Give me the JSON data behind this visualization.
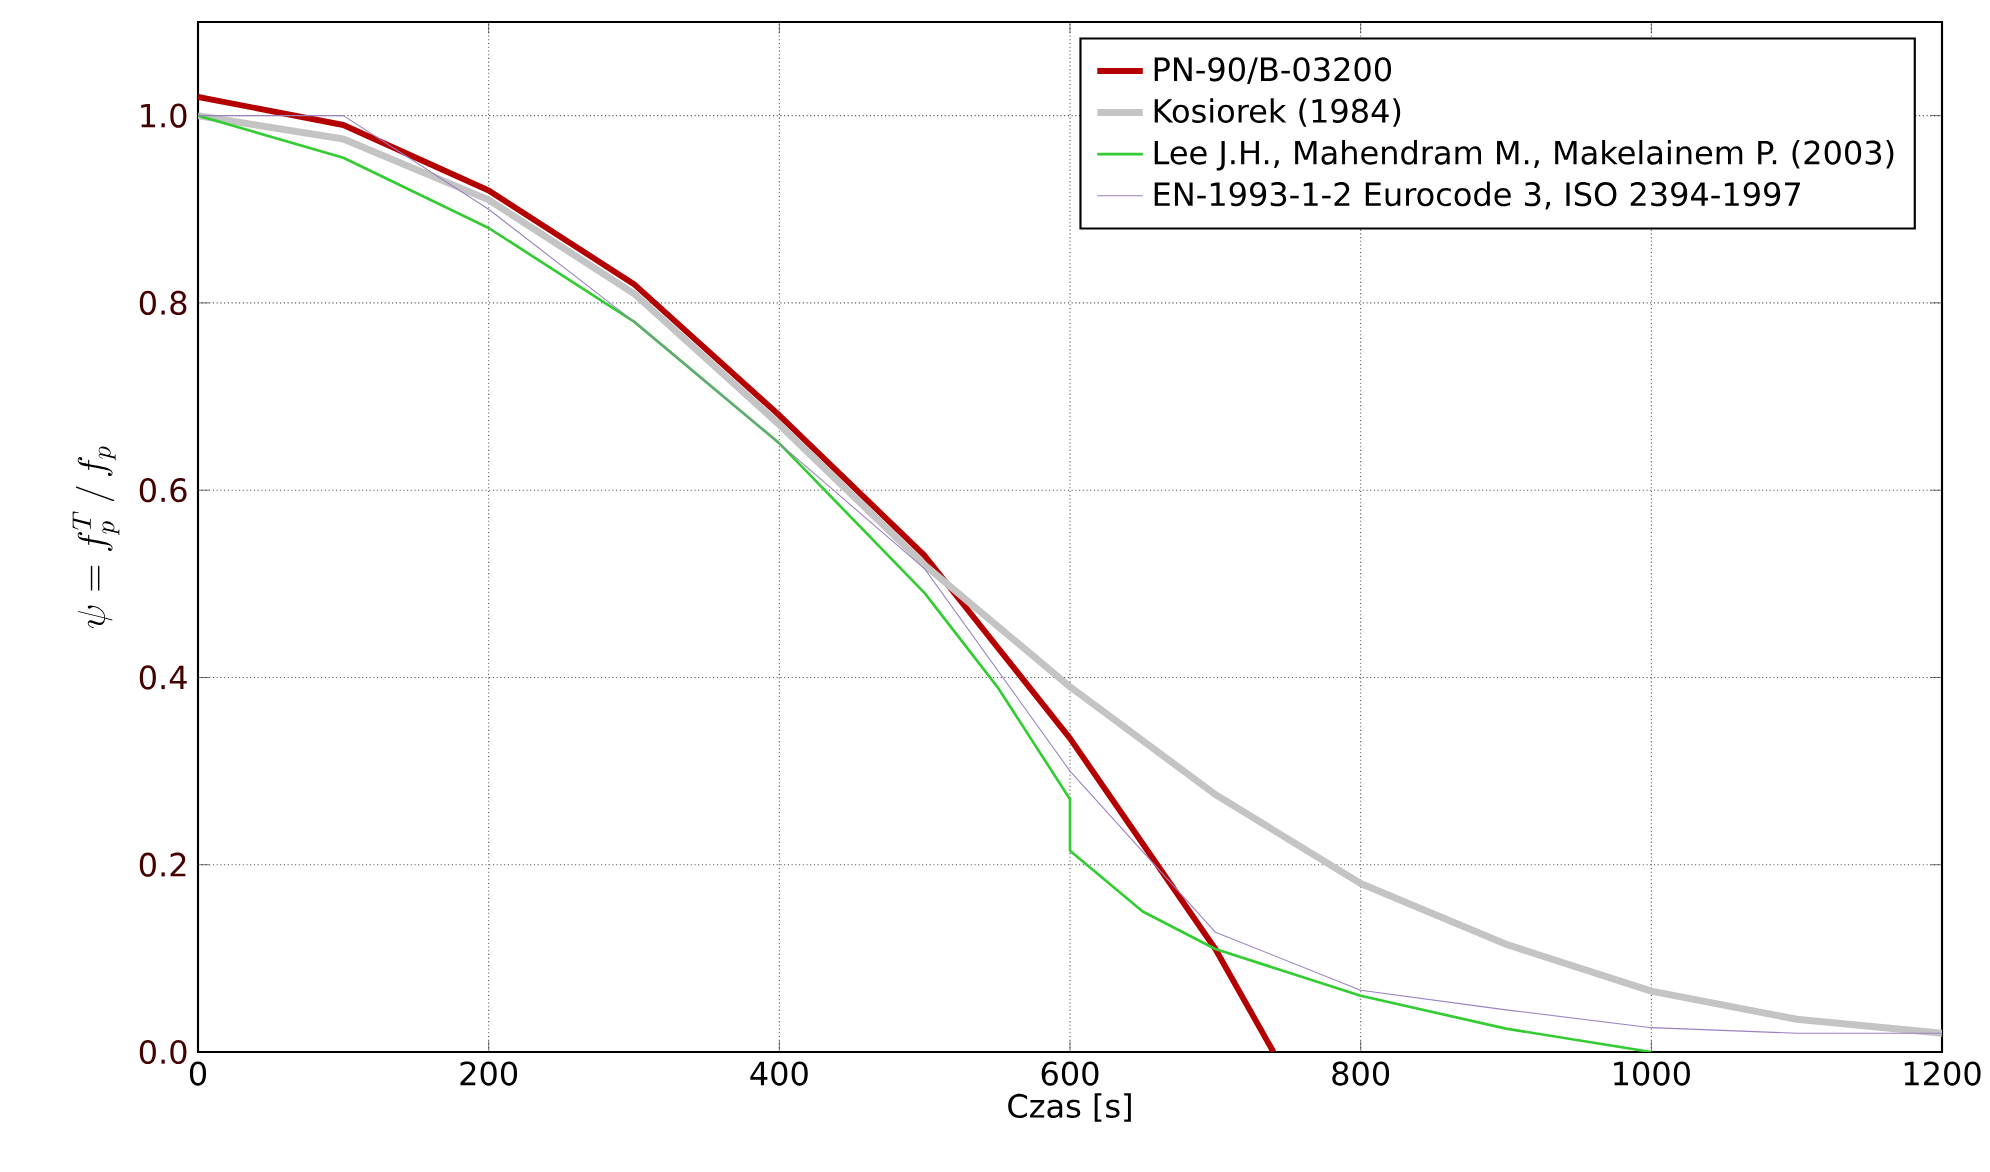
{
  "chart_data": {
    "type": "line",
    "xlabel": "Czas [s]",
    "ylabel": "\\psi = f_p^T\\,/\\,f_p",
    "xlim": [
      0,
      1200
    ],
    "ylim": [
      0,
      1.1
    ],
    "xticks": [
      0,
      200,
      400,
      600,
      800,
      1000,
      1200
    ],
    "yticks": [
      {
        "value": 0,
        "label": "0.0"
      },
      {
        "value": 0.2,
        "label": "0.2"
      },
      {
        "value": 0.4,
        "label": "0.4"
      },
      {
        "value": 0.6,
        "label": "0.6"
      },
      {
        "value": 0.8,
        "label": "0.8"
      },
      {
        "value": 1.0,
        "label": "1.0"
      }
    ],
    "grid": true,
    "legend": "top right",
    "marker": "none",
    "line_style": "solid",
    "series": [
      {
        "name": "PN-90/B-03200",
        "color": "#b40000",
        "x": [
          0,
          100,
          200,
          300,
          400,
          500,
          600,
          700,
          740
        ],
        "values": [
          1.02,
          0.99,
          0.92,
          0.82,
          0.68,
          0.53,
          0.335,
          0.11,
          0.0
        ]
      },
      {
        "name": "Kosiorek (1984)",
        "color": "#c4c4c4",
        "x": [
          0,
          100,
          200,
          300,
          400,
          500,
          600,
          700,
          800,
          900,
          1000,
          1100,
          1200
        ],
        "values": [
          1.0,
          0.975,
          0.91,
          0.81,
          0.67,
          0.52,
          0.39,
          0.275,
          0.18,
          0.115,
          0.065,
          0.035,
          0.02
        ]
      },
      {
        "name": "Lee J.H., Mahendram M., Makelainem P. (2003)",
        "color": "#33cc33",
        "x": [
          0,
          100,
          200,
          300,
          400,
          500,
          550,
          600,
          600,
          650,
          700,
          800,
          900,
          1000
        ],
        "values": [
          1.0,
          0.955,
          0.88,
          0.78,
          0.65,
          0.49,
          0.39,
          0.27,
          0.215,
          0.15,
          0.11,
          0.06,
          0.025,
          0.0
        ]
      },
      {
        "name": "EN-1993-1-2 Eurocode 3, ISO 2394-1997",
        "color": "#9a80c0",
        "x": [
          0,
          100,
          200,
          300,
          400,
          500,
          600,
          700,
          800,
          900,
          1000,
          1100,
          1200
        ],
        "values": [
          1.0,
          1.0,
          0.9,
          0.78,
          0.65,
          0.516,
          0.3,
          0.128,
          0.066,
          0.045,
          0.026,
          0.02,
          0.02
        ]
      }
    ]
  }
}
